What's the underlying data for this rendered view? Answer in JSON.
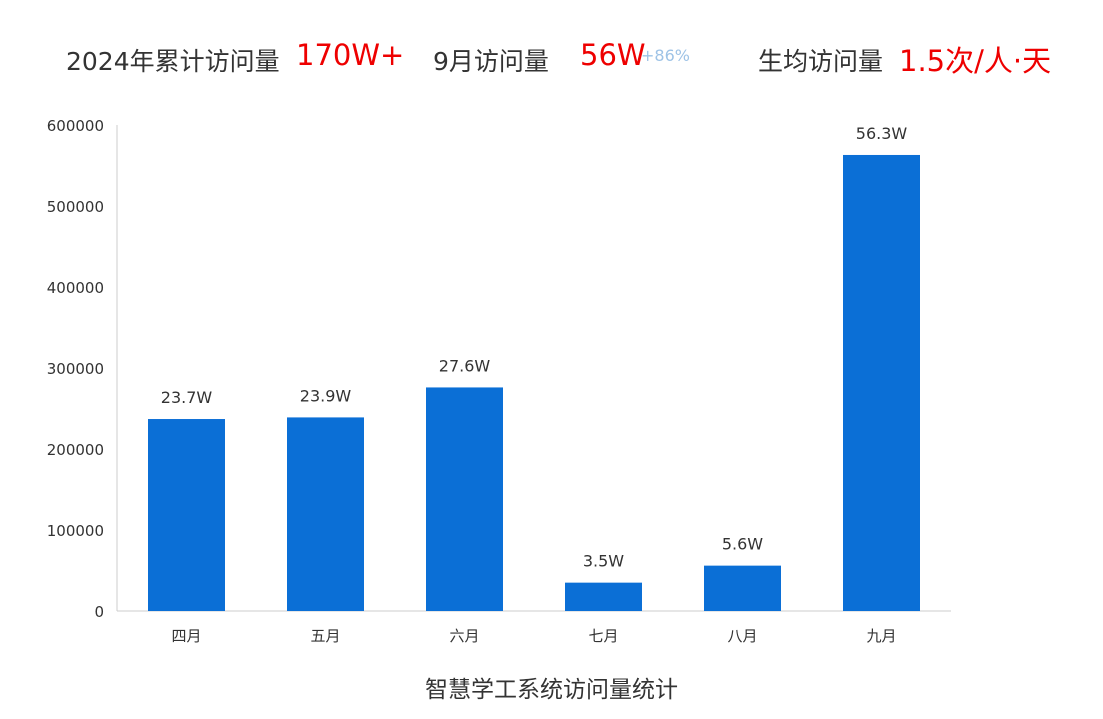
{
  "kpis": {
    "total_label": "2024年累计访问量",
    "total_value": "170W+",
    "sept_label": "9月访问量",
    "sept_value": "56W",
    "sept_delta": "+86%",
    "avg_label": "生均访问量",
    "avg_value": "1.5次/人·天"
  },
  "colors": {
    "bar": "#0b6fd6",
    "highlight": "#ee0000",
    "delta": "#9ec3e6",
    "text": "#333333"
  },
  "chart_data": {
    "type": "bar",
    "title": "智慧学工系统访问量统计",
    "categories": [
      "四月",
      "五月",
      "六月",
      "七月",
      "八月",
      "九月"
    ],
    "values": [
      237000,
      239000,
      276000,
      35000,
      56000,
      563000
    ],
    "data_labels": [
      "23.7W",
      "23.9W",
      "27.6W",
      "3.5W",
      "5.6W",
      "56.3W"
    ],
    "yticks": [
      "0",
      "100000",
      "200000",
      "300000",
      "400000",
      "500000",
      "600000"
    ],
    "ylim": [
      0,
      600000
    ],
    "grid": false,
    "legend": "none"
  }
}
